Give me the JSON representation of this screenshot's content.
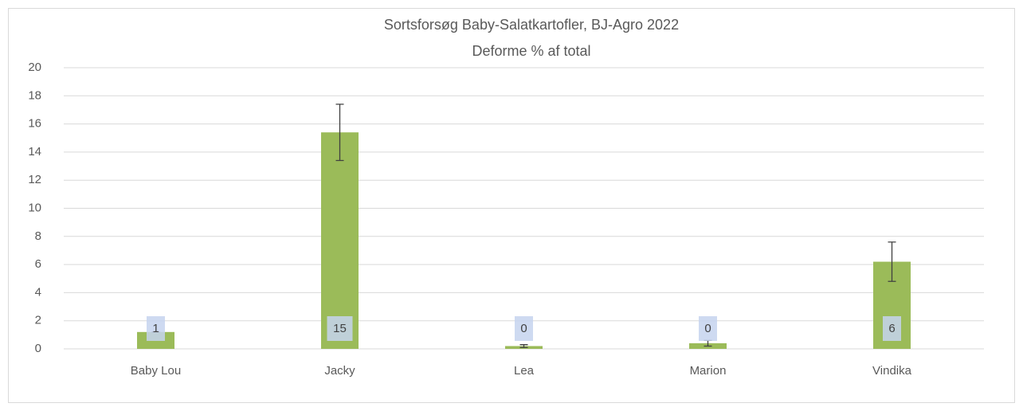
{
  "chart_data": {
    "type": "bar",
    "title": "Sortsforsøg Baby-Salatkartofler, BJ-Agro 2022",
    "subtitle": "Deforme % af total",
    "categories": [
      "Baby Lou",
      "Jacky",
      "Lea",
      "Marion",
      "Vindika"
    ],
    "values": [
      1.2,
      15.4,
      0.2,
      0.4,
      6.2
    ],
    "value_labels": [
      "1",
      "15",
      "0",
      "0",
      "6"
    ],
    "errors": [
      0,
      2.0,
      0.1,
      0.2,
      1.4
    ],
    "color": "#9bbb59",
    "ylim": [
      0,
      20
    ],
    "yticks": [
      0,
      2,
      4,
      6,
      8,
      10,
      12,
      14,
      16,
      18,
      20
    ],
    "grid": true
  }
}
